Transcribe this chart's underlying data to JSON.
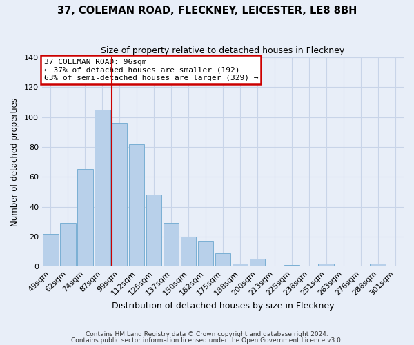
{
  "title": "37, COLEMAN ROAD, FLECKNEY, LEICESTER, LE8 8BH",
  "subtitle": "Size of property relative to detached houses in Fleckney",
  "xlabel": "Distribution of detached houses by size in Fleckney",
  "ylabel": "Number of detached properties",
  "bar_labels": [
    "49sqm",
    "62sqm",
    "74sqm",
    "87sqm",
    "99sqm",
    "112sqm",
    "125sqm",
    "137sqm",
    "150sqm",
    "162sqm",
    "175sqm",
    "188sqm",
    "200sqm",
    "213sqm",
    "225sqm",
    "238sqm",
    "251sqm",
    "263sqm",
    "276sqm",
    "288sqm",
    "301sqm"
  ],
  "bar_heights": [
    22,
    29,
    65,
    105,
    96,
    82,
    48,
    29,
    20,
    17,
    9,
    2,
    5,
    0,
    1,
    0,
    2,
    0,
    0,
    2,
    0
  ],
  "bar_color": "#b8d0ea",
  "bar_edge_color": "#7aafd4",
  "vline_index": 4,
  "vline_color": "#cc0000",
  "annotation_box_text": "37 COLEMAN ROAD: 96sqm\n← 37% of detached houses are smaller (192)\n63% of semi-detached houses are larger (329) →",
  "annotation_box_edge_color": "#cc0000",
  "annotation_box_bg": "#ffffff",
  "ylim": [
    0,
    140
  ],
  "yticks": [
    0,
    20,
    40,
    60,
    80,
    100,
    120,
    140
  ],
  "grid_color": "#c8d4e8",
  "background_color": "#e8eef8",
  "footnote1": "Contains HM Land Registry data © Crown copyright and database right 2024.",
  "footnote2": "Contains public sector information licensed under the Open Government Licence v3.0."
}
